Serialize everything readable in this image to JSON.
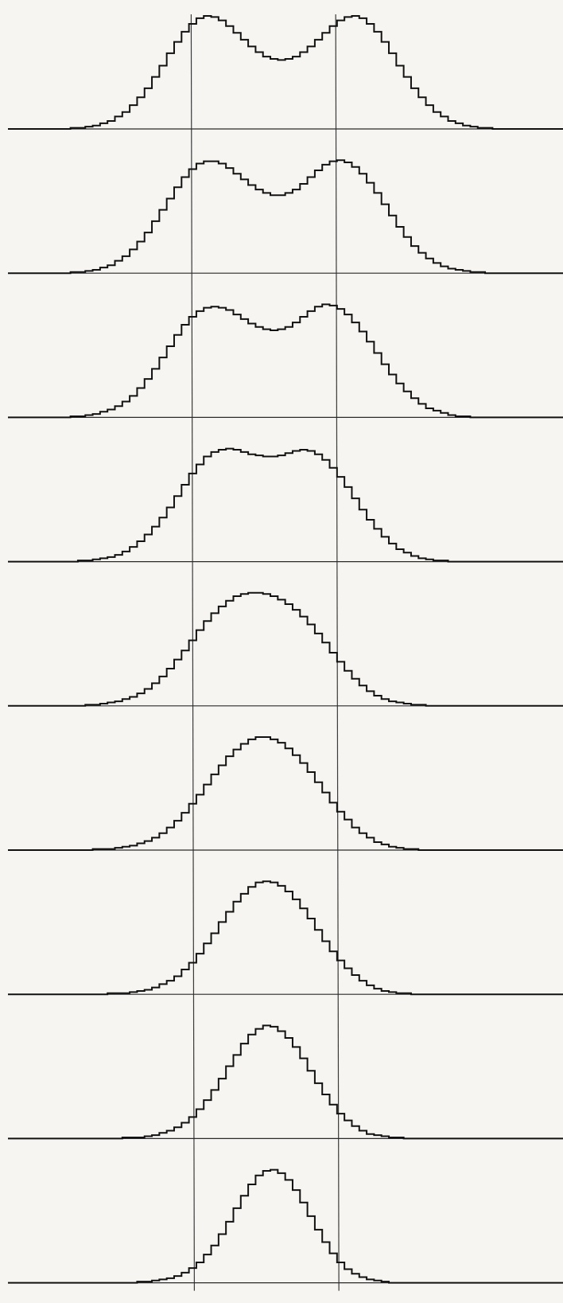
{
  "chart_data": {
    "type": "line",
    "x_range": [
      0,
      100
    ],
    "y_range": [
      0,
      1
    ],
    "grid": false,
    "legend": "none",
    "reference_lines_x": [
      30,
      62
    ],
    "series": [
      {
        "values": [
          0.0,
          0.0,
          0.01,
          0.01,
          0.02,
          0.03,
          0.05,
          0.07,
          0.11,
          0.15,
          0.21,
          0.28,
          0.36,
          0.46,
          0.56,
          0.67,
          0.77,
          0.86,
          0.93,
          0.98,
          1.0,
          0.99,
          0.96,
          0.91,
          0.85,
          0.79,
          0.73,
          0.68,
          0.64,
          0.62,
          0.61,
          0.62,
          0.64,
          0.68,
          0.73,
          0.79,
          0.85,
          0.91,
          0.96,
          0.99,
          1.0,
          0.98,
          0.93,
          0.86,
          0.77,
          0.67,
          0.56,
          0.46,
          0.36,
          0.28,
          0.21,
          0.15,
          0.11,
          0.07,
          0.05,
          0.03,
          0.02,
          0.01,
          0.01,
          0.0,
          0.0
        ]
      },
      {
        "values": [
          0.0,
          0.0,
          0.01,
          0.01,
          0.02,
          0.03,
          0.05,
          0.07,
          0.11,
          0.15,
          0.21,
          0.28,
          0.36,
          0.46,
          0.56,
          0.66,
          0.76,
          0.85,
          0.92,
          0.97,
          0.99,
          0.99,
          0.97,
          0.93,
          0.88,
          0.83,
          0.78,
          0.74,
          0.71,
          0.69,
          0.69,
          0.71,
          0.74,
          0.79,
          0.85,
          0.91,
          0.96,
          0.99,
          1.0,
          0.98,
          0.94,
          0.88,
          0.8,
          0.71,
          0.61,
          0.51,
          0.41,
          0.32,
          0.24,
          0.18,
          0.13,
          0.09,
          0.06,
          0.04,
          0.03,
          0.02,
          0.01,
          0.01,
          0.0,
          0.0,
          0.0
        ]
      },
      {
        "values": [
          0.0,
          0.0,
          0.01,
          0.01,
          0.02,
          0.03,
          0.05,
          0.07,
          0.1,
          0.14,
          0.19,
          0.26,
          0.34,
          0.43,
          0.53,
          0.63,
          0.73,
          0.82,
          0.89,
          0.94,
          0.97,
          0.98,
          0.97,
          0.95,
          0.91,
          0.87,
          0.83,
          0.8,
          0.78,
          0.77,
          0.78,
          0.8,
          0.84,
          0.89,
          0.94,
          0.98,
          1.0,
          0.99,
          0.96,
          0.91,
          0.84,
          0.76,
          0.67,
          0.57,
          0.47,
          0.38,
          0.3,
          0.23,
          0.17,
          0.12,
          0.08,
          0.06,
          0.04,
          0.02,
          0.01,
          0.01,
          0.0,
          0.0,
          0.0,
          0.0,
          0.0
        ]
      },
      {
        "values": [
          0.0,
          0.0,
          0.0,
          0.01,
          0.01,
          0.02,
          0.03,
          0.04,
          0.06,
          0.09,
          0.13,
          0.18,
          0.24,
          0.31,
          0.39,
          0.48,
          0.58,
          0.68,
          0.78,
          0.86,
          0.93,
          0.97,
          0.99,
          1.0,
          0.99,
          0.97,
          0.95,
          0.94,
          0.93,
          0.93,
          0.94,
          0.96,
          0.98,
          0.99,
          0.98,
          0.95,
          0.9,
          0.83,
          0.75,
          0.66,
          0.56,
          0.46,
          0.37,
          0.29,
          0.22,
          0.16,
          0.11,
          0.08,
          0.05,
          0.03,
          0.02,
          0.01,
          0.01,
          0.0,
          0.0,
          0.0,
          0.0,
          0.0,
          0.0,
          0.0,
          0.0
        ]
      },
      {
        "values": [
          0.0,
          0.0,
          0.0,
          0.0,
          0.01,
          0.01,
          0.02,
          0.03,
          0.04,
          0.06,
          0.08,
          0.11,
          0.15,
          0.2,
          0.26,
          0.33,
          0.41,
          0.49,
          0.58,
          0.67,
          0.75,
          0.82,
          0.88,
          0.93,
          0.97,
          0.99,
          1.0,
          1.0,
          0.99,
          0.97,
          0.94,
          0.9,
          0.85,
          0.79,
          0.72,
          0.64,
          0.56,
          0.47,
          0.39,
          0.31,
          0.24,
          0.18,
          0.13,
          0.09,
          0.06,
          0.04,
          0.03,
          0.02,
          0.01,
          0.01,
          0.0,
          0.0,
          0.0,
          0.0,
          0.0,
          0.0,
          0.0,
          0.0,
          0.0,
          0.0,
          0.0
        ]
      },
      {
        "values": [
          0.0,
          0.0,
          0.0,
          0.0,
          0.0,
          0.01,
          0.01,
          0.01,
          0.02,
          0.03,
          0.04,
          0.06,
          0.08,
          0.11,
          0.15,
          0.2,
          0.26,
          0.33,
          0.41,
          0.49,
          0.58,
          0.67,
          0.75,
          0.83,
          0.89,
          0.94,
          0.98,
          1.0,
          1.0,
          0.98,
          0.95,
          0.9,
          0.84,
          0.77,
          0.69,
          0.6,
          0.51,
          0.42,
          0.34,
          0.27,
          0.2,
          0.15,
          0.11,
          0.07,
          0.05,
          0.03,
          0.02,
          0.01,
          0.01,
          0.0,
          0.0,
          0.0,
          0.0,
          0.0,
          0.0,
          0.0,
          0.0,
          0.0,
          0.0,
          0.0,
          0.0
        ]
      },
      {
        "values": [
          0.0,
          0.0,
          0.0,
          0.0,
          0.0,
          0.0,
          0.0,
          0.01,
          0.01,
          0.01,
          0.02,
          0.03,
          0.04,
          0.06,
          0.09,
          0.12,
          0.16,
          0.22,
          0.28,
          0.36,
          0.45,
          0.54,
          0.64,
          0.73,
          0.82,
          0.89,
          0.95,
          0.99,
          1.0,
          0.99,
          0.96,
          0.91,
          0.84,
          0.76,
          0.67,
          0.57,
          0.47,
          0.38,
          0.3,
          0.23,
          0.17,
          0.12,
          0.08,
          0.05,
          0.03,
          0.02,
          0.01,
          0.01,
          0.0,
          0.0,
          0.0,
          0.0,
          0.0,
          0.0,
          0.0,
          0.0,
          0.0,
          0.0,
          0.0,
          0.0,
          0.0
        ]
      },
      {
        "values": [
          0.0,
          0.0,
          0.0,
          0.0,
          0.0,
          0.0,
          0.0,
          0.0,
          0.0,
          0.01,
          0.01,
          0.01,
          0.02,
          0.03,
          0.05,
          0.07,
          0.1,
          0.14,
          0.19,
          0.26,
          0.34,
          0.43,
          0.53,
          0.64,
          0.74,
          0.84,
          0.92,
          0.97,
          1.0,
          0.99,
          0.95,
          0.89,
          0.81,
          0.71,
          0.6,
          0.49,
          0.39,
          0.3,
          0.22,
          0.16,
          0.11,
          0.07,
          0.04,
          0.03,
          0.02,
          0.01,
          0.01,
          0.0,
          0.0,
          0.0,
          0.0,
          0.0,
          0.0,
          0.0,
          0.0,
          0.0,
          0.0,
          0.0,
          0.0,
          0.0,
          0.0
        ]
      },
      {
        "values": [
          0.0,
          0.0,
          0.0,
          0.0,
          0.0,
          0.0,
          0.0,
          0.0,
          0.0,
          0.0,
          0.0,
          0.01,
          0.01,
          0.02,
          0.03,
          0.04,
          0.06,
          0.09,
          0.13,
          0.18,
          0.25,
          0.33,
          0.43,
          0.54,
          0.66,
          0.77,
          0.87,
          0.95,
          0.99,
          1.0,
          0.97,
          0.91,
          0.82,
          0.71,
          0.59,
          0.47,
          0.36,
          0.26,
          0.18,
          0.12,
          0.08,
          0.05,
          0.03,
          0.02,
          0.01,
          0.0,
          0.0,
          0.0,
          0.0,
          0.0,
          0.0,
          0.0,
          0.0,
          0.0,
          0.0,
          0.0,
          0.0,
          0.0,
          0.0,
          0.0,
          0.0
        ]
      }
    ]
  }
}
